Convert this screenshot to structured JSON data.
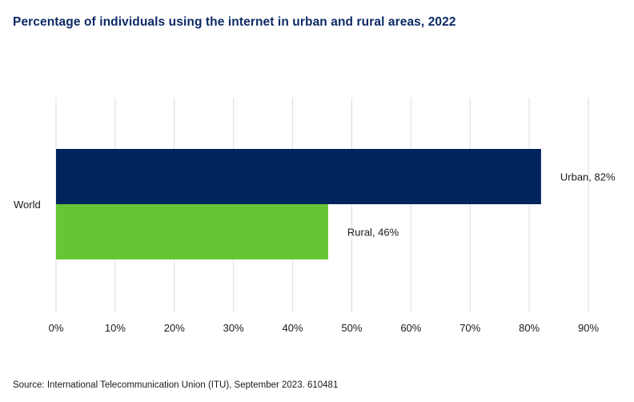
{
  "title": "Percentage of individuals using the internet in urban and rural areas, 2022",
  "source": "Source: International Telecommunication Union (ITU), September 2023. 610481",
  "chart_data": {
    "type": "bar",
    "orientation": "horizontal",
    "title": "Percentage of individuals using the internet in urban and rural areas, 2022",
    "categories": [
      "World"
    ],
    "series": [
      {
        "name": "Urban",
        "values": [
          82
        ],
        "color": "#00245c",
        "label": "Urban, 82%"
      },
      {
        "name": "Rural",
        "values": [
          46
        ],
        "color": "#66c533",
        "label": "Rural, 46%"
      }
    ],
    "xlim": [
      0,
      90
    ],
    "xticks": [
      0,
      10,
      20,
      30,
      40,
      50,
      60,
      70,
      80,
      90
    ],
    "xtick_labels": [
      "0%",
      "10%",
      "20%",
      "30%",
      "40%",
      "50%",
      "60%",
      "70%",
      "80%",
      "90%"
    ],
    "grid": true,
    "xlabel": "",
    "ylabel": ""
  }
}
